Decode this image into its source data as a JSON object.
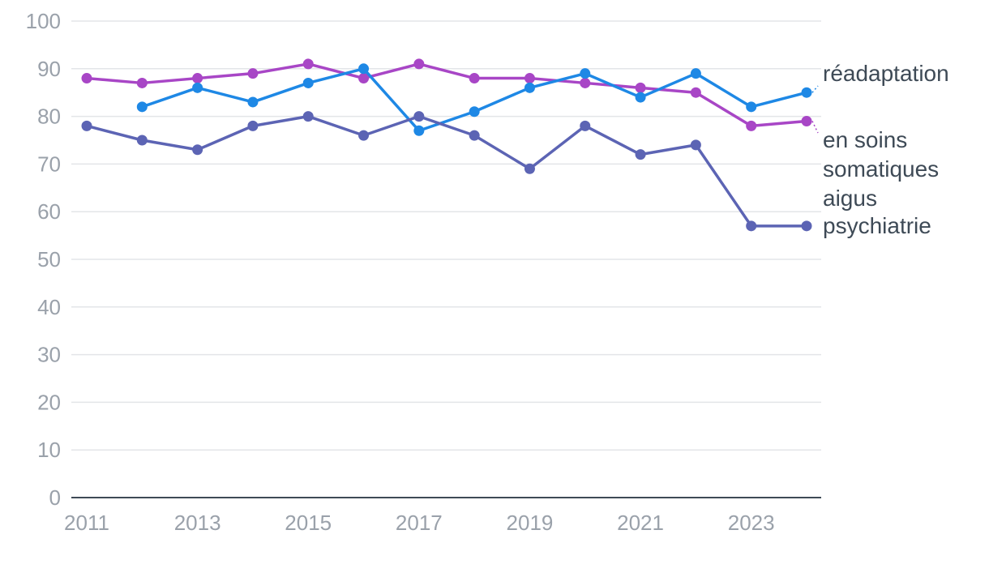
{
  "chart_data": {
    "type": "line",
    "title": "",
    "xlabel": "",
    "ylabel": "",
    "x": [
      2011,
      2012,
      2013,
      2014,
      2015,
      2016,
      2017,
      2018,
      2019,
      2020,
      2021,
      2022,
      2023,
      2024
    ],
    "xticks": [
      2011,
      2013,
      2015,
      2017,
      2019,
      2021,
      2023
    ],
    "yticks": [
      0,
      10,
      20,
      30,
      40,
      50,
      60,
      70,
      80,
      90,
      100
    ],
    "ylim": [
      0,
      100
    ],
    "grid": true,
    "series": [
      {
        "name": "réadaptation",
        "label_lines": [
          "réadaptation"
        ],
        "color": "#1e88e5",
        "values": [
          null,
          82,
          86,
          83,
          87,
          90,
          77,
          81,
          86,
          89,
          84,
          89,
          82,
          85
        ]
      },
      {
        "name": "en soins somatiques aigus",
        "label_lines": [
          "en soins",
          "somatiques",
          "aigus"
        ],
        "color": "#a846c6",
        "values": [
          88,
          87,
          88,
          89,
          91,
          88,
          91,
          88,
          88,
          87,
          86,
          85,
          78,
          79
        ]
      },
      {
        "name": "psychiatrie",
        "label_lines": [
          "psychiatrie"
        ],
        "color": "#5c64b4",
        "values": [
          78,
          75,
          73,
          78,
          80,
          76,
          80,
          76,
          69,
          78,
          72,
          74,
          57,
          57
        ]
      }
    ]
  }
}
